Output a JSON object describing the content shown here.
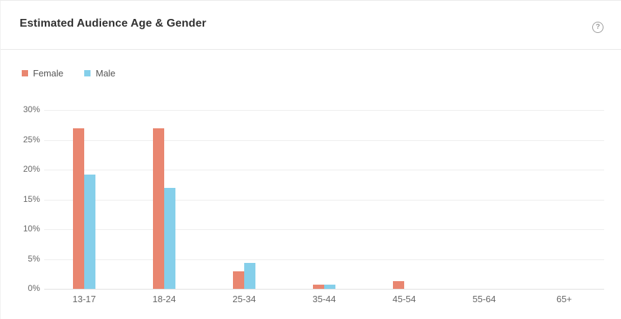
{
  "header": {
    "title": "Estimated Audience Age & Gender",
    "help_glyph": "?"
  },
  "chart_data": {
    "type": "bar",
    "title": "Estimated Audience Age & Gender",
    "categories": [
      "13-17",
      "18-24",
      "25-34",
      "35-44",
      "45-54",
      "55-64",
      "65+"
    ],
    "series": [
      {
        "name": "Female",
        "color": "#E98670",
        "values": [
          27,
          27,
          2.9,
          0.7,
          1.3,
          0,
          0
        ]
      },
      {
        "name": "Male",
        "color": "#85CFEA",
        "values": [
          19.2,
          17,
          4.3,
          0.7,
          0,
          0,
          0
        ]
      }
    ],
    "xlabel": "",
    "ylabel": "",
    "ylim": [
      0,
      30
    ],
    "yticks": [
      0,
      5,
      10,
      15,
      20,
      25,
      30
    ],
    "ytick_labels": [
      "0%",
      "5%",
      "10%",
      "15%",
      "20%",
      "25%",
      "30%"
    ],
    "grid": true,
    "legend_position": "top-left",
    "colors": {
      "female": "#E98670",
      "male": "#85CFEA",
      "gridline": "#ededed",
      "axis_text": "#666666",
      "title_text": "#333333"
    }
  }
}
